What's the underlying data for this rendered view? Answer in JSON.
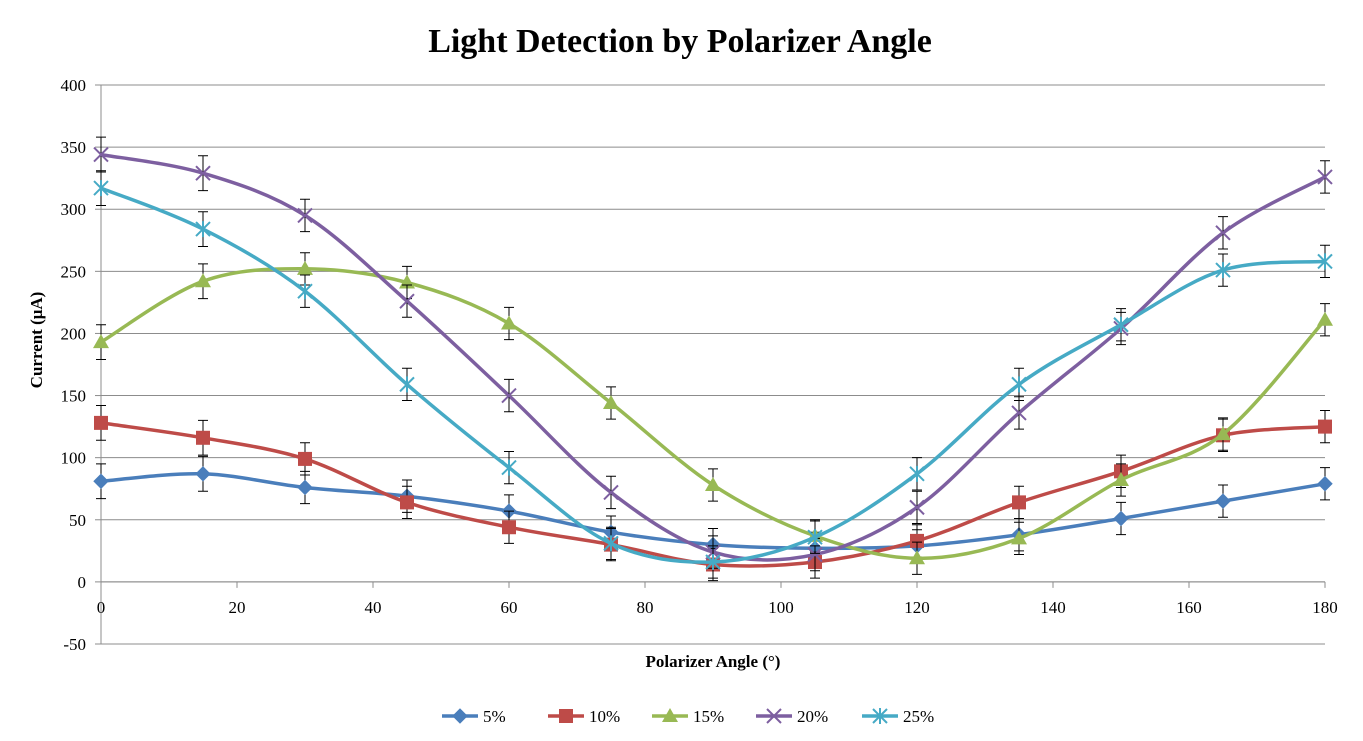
{
  "chart_data": {
    "type": "line",
    "title": "Light Detection by Polarizer Angle",
    "xlabel": "Polarizer Angle (°)",
    "ylabel": "Current  (μA)",
    "xlim": [
      0,
      180
    ],
    "ylim": [
      -50,
      400
    ],
    "xticks": [
      0,
      20,
      40,
      60,
      80,
      100,
      120,
      140,
      160,
      180
    ],
    "yticks": [
      -50,
      0,
      50,
      100,
      150,
      200,
      250,
      300,
      350,
      400
    ],
    "grid": "horizontal",
    "legend_position": "bottom",
    "smooth": true,
    "x": [
      0,
      15,
      30,
      45,
      60,
      75,
      90,
      105,
      120,
      135,
      150,
      165,
      180
    ],
    "series": [
      {
        "name": "5%",
        "color": "#4a7ebb",
        "marker": "diamond",
        "values": [
          81,
          87,
          76,
          69,
          57,
          40,
          30,
          27,
          29,
          38,
          51,
          65,
          79
        ],
        "error": [
          14,
          14,
          13,
          13,
          13,
          13,
          13,
          13,
          13,
          13,
          13,
          13,
          13
        ]
      },
      {
        "name": "10%",
        "color": "#be4b48",
        "marker": "square",
        "values": [
          128,
          116,
          99,
          64,
          44,
          30,
          14,
          16,
          33,
          64,
          89,
          118,
          125
        ],
        "error": [
          14,
          14,
          13,
          13,
          13,
          13,
          13,
          13,
          13,
          13,
          13,
          13,
          13
        ]
      },
      {
        "name": "15%",
        "color": "#98b954",
        "marker": "triangle",
        "values": [
          193,
          242,
          252,
          241,
          208,
          144,
          78,
          37,
          19,
          35,
          82,
          119,
          211
        ],
        "error": [
          14,
          14,
          13,
          13,
          13,
          13,
          13,
          13,
          13,
          13,
          13,
          13,
          13
        ]
      },
      {
        "name": "20%",
        "color": "#7d5fa0",
        "marker": "x",
        "values": [
          344,
          329,
          295,
          226,
          150,
          72,
          24,
          22,
          60,
          136,
          204,
          281,
          326
        ],
        "error": [
          14,
          14,
          13,
          13,
          13,
          13,
          13,
          13,
          13,
          13,
          13,
          13,
          13
        ]
      },
      {
        "name": "25%",
        "color": "#46aac5",
        "marker": "star",
        "values": [
          317,
          284,
          234,
          159,
          92,
          31,
          16,
          36,
          87,
          159,
          207,
          251,
          258
        ],
        "error": [
          14,
          14,
          13,
          13,
          13,
          13,
          13,
          13,
          13,
          13,
          13,
          13,
          13
        ]
      }
    ]
  }
}
